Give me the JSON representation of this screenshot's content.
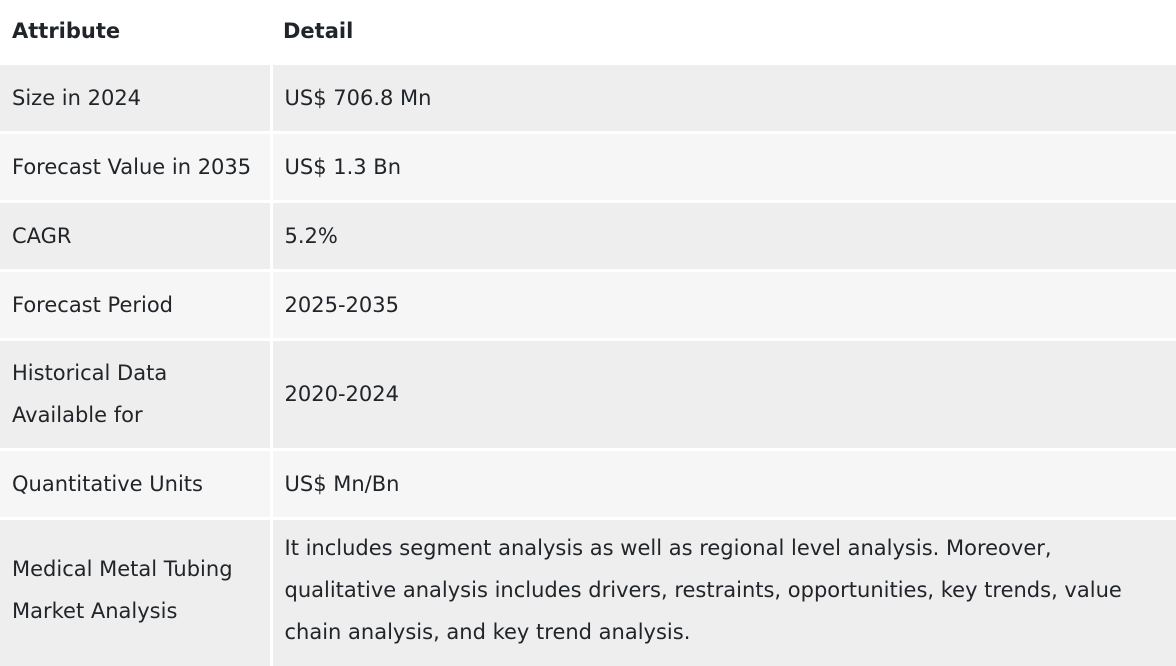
{
  "table": {
    "headers": [
      "Attribute",
      "Detail"
    ],
    "rows": [
      {
        "attribute": "Size in 2024",
        "detail": "US$ 706.8 Mn"
      },
      {
        "attribute": "Forecast Value in 2035",
        "detail": "US$ 1.3 Bn"
      },
      {
        "attribute": "CAGR",
        "detail": "5.2%"
      },
      {
        "attribute": "Forecast Period",
        "detail": "2025-2035"
      },
      {
        "attribute": "Historical Data Available for",
        "detail": "2020-2024"
      },
      {
        "attribute": "Quantitative Units",
        "detail": "US$ Mn/Bn"
      },
      {
        "attribute": "Medical Metal Tubing Market Analysis",
        "detail": "It includes segment analysis as well as regional level analysis. Moreover, qualitative analysis includes drivers, restraints, opportunities, key trends, value chain analysis, and key trend analysis."
      }
    ]
  }
}
